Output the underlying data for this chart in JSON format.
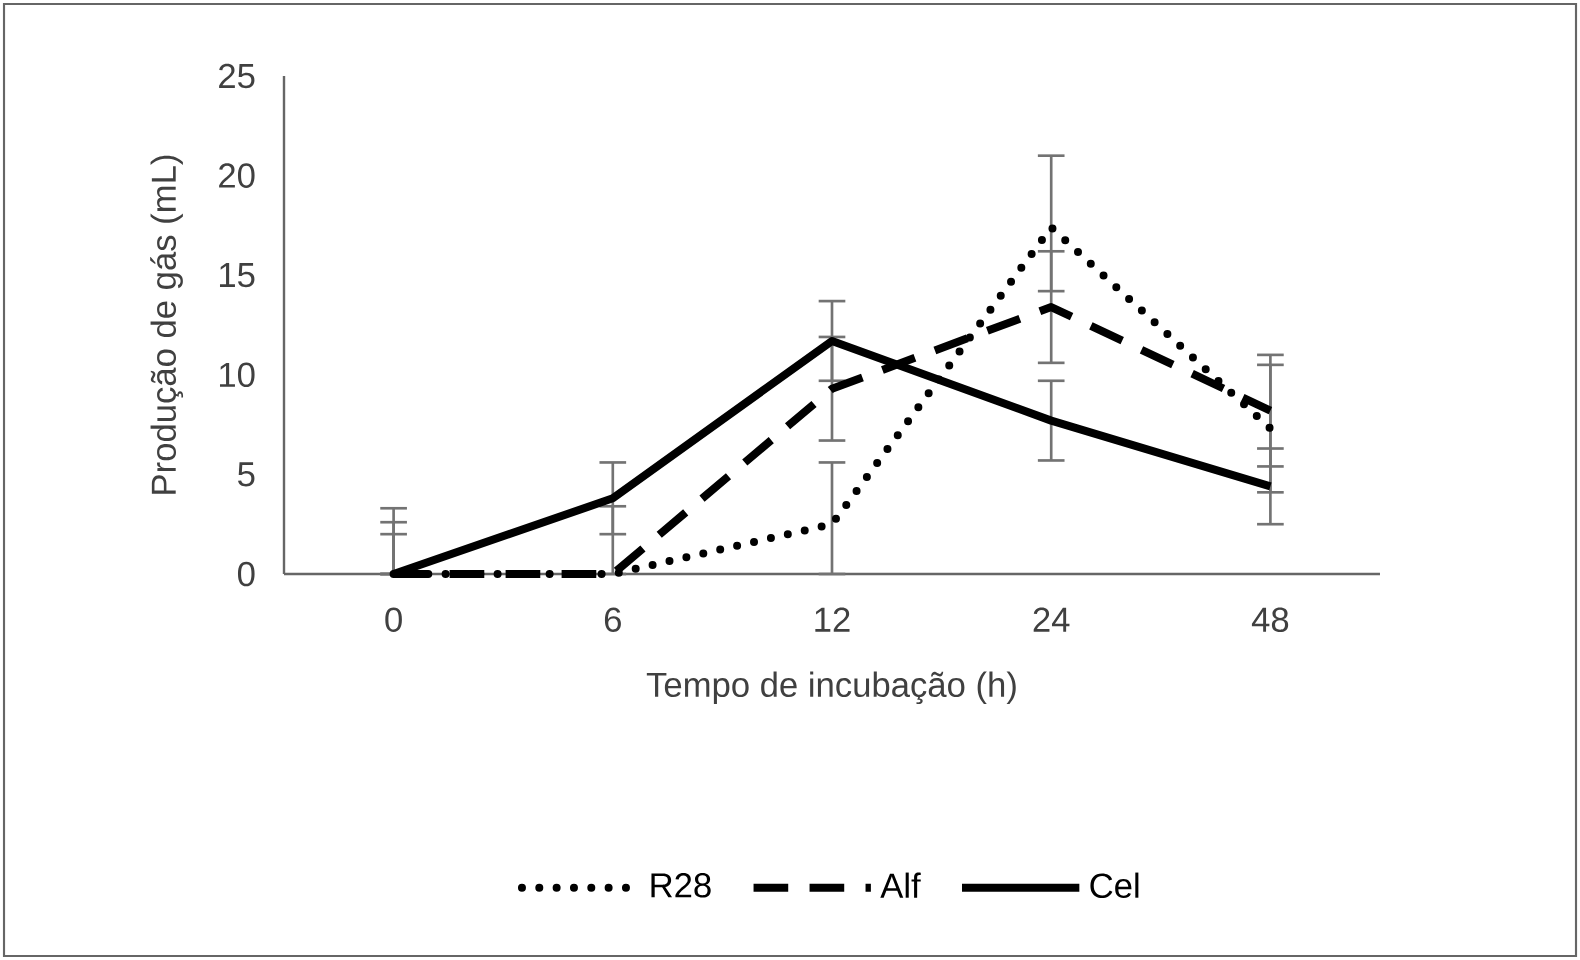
{
  "chart_data": {
    "type": "line",
    "xlabel": "Tempo de incubação (h)",
    "ylabel": "Produção de gás (mL)",
    "categories": [
      "0",
      "6",
      "12",
      "24",
      "48"
    ],
    "ylim": [
      0,
      25
    ],
    "yticks": [
      0,
      5,
      10,
      15,
      20,
      25
    ],
    "grid": false,
    "legend": "bottom",
    "marker": "none",
    "series": [
      {
        "name": "R28",
        "color": "#000000",
        "line_style": "dotted",
        "values": [
          0,
          0,
          2.5,
          17.4,
          7.3
        ],
        "errors": [
          [
            0,
            2.0
          ],
          null,
          [
            0,
            5.6
          ],
          [
            14.2,
            21.0
          ],
          [
            4.1,
            10.5
          ]
        ]
      },
      {
        "name": "Alf",
        "color": "#000000",
        "line_style": "dashed",
        "values": [
          0,
          0,
          9.3,
          13.4,
          8.2
        ],
        "errors": [
          [
            0,
            2.6
          ],
          [
            0,
            3.4
          ],
          [
            6.7,
            11.9
          ],
          [
            10.6,
            16.2
          ],
          [
            5.4,
            11.0
          ]
        ]
      },
      {
        "name": "Cel",
        "color": "#000000",
        "line_style": "solid",
        "values": [
          0,
          3.8,
          11.7,
          7.7,
          4.4
        ],
        "errors": [
          [
            0,
            3.3
          ],
          [
            2.0,
            5.6
          ],
          [
            9.7,
            13.7
          ],
          [
            5.7,
            9.7
          ],
          [
            2.5,
            6.3
          ]
        ]
      }
    ]
  }
}
